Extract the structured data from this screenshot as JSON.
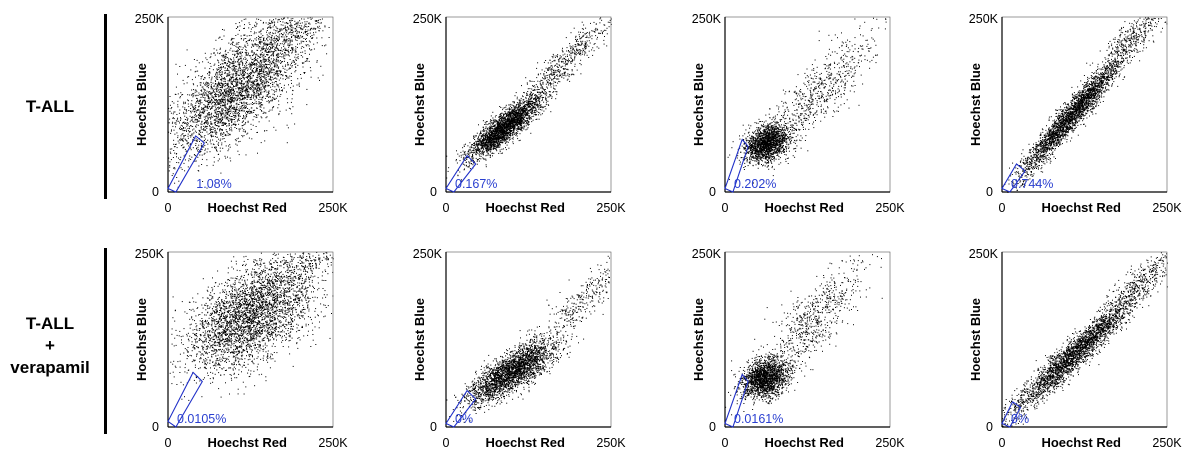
{
  "rows": [
    {
      "label_lines": [
        "T-ALL"
      ]
    },
    {
      "label_lines": [
        "T-ALL",
        "+",
        "verapamil"
      ]
    }
  ],
  "colors": {
    "points": "#000000",
    "gate": "#1f2fc8",
    "gate_label": "#2a3fd0",
    "axis": "#000000"
  },
  "chart_data": [
    {
      "type": "scatter",
      "row": 0,
      "col": 0,
      "xlabel": "Hoechst Red",
      "ylabel": "Hoechst Blue",
      "xlim": [
        0,
        250000
      ],
      "ylim": [
        0,
        250000
      ],
      "x_ticks": [
        "0",
        "250K"
      ],
      "y_ticks": [
        "0",
        "250K"
      ],
      "gate_percent": "1.08%",
      "gate_polygon": [
        [
          0,
          5000
        ],
        [
          12000,
          0
        ],
        [
          55000,
          70000
        ],
        [
          42000,
          80000
        ]
      ],
      "clusters": [
        {
          "cx": 105000,
          "cy": 150000,
          "sx": 70000,
          "sy": 28000,
          "angle": 42,
          "n": 3400
        },
        {
          "cx": 190000,
          "cy": 230000,
          "sx": 35000,
          "sy": 15000,
          "angle": 35,
          "n": 260
        }
      ]
    },
    {
      "type": "scatter",
      "row": 0,
      "col": 1,
      "xlabel": "Hoechst Red",
      "ylabel": "Hoechst Blue",
      "xlim": [
        0,
        250000
      ],
      "ylim": [
        0,
        250000
      ],
      "x_ticks": [
        "0",
        "250K"
      ],
      "y_ticks": [
        "0",
        "250K"
      ],
      "gate_percent": "0.167%",
      "gate_polygon": [
        [
          0,
          5000
        ],
        [
          12000,
          0
        ],
        [
          45000,
          40000
        ],
        [
          32000,
          52000
        ]
      ],
      "clusters": [
        {
          "cx": 88000,
          "cy": 92000,
          "sx": 34000,
          "sy": 9000,
          "angle": 38,
          "n": 2700
        },
        {
          "cx": 180000,
          "cy": 185000,
          "sx": 55000,
          "sy": 10000,
          "angle": 42,
          "n": 600
        }
      ]
    },
    {
      "type": "scatter",
      "row": 0,
      "col": 2,
      "xlabel": "Hoechst Red",
      "ylabel": "Hoechst Blue",
      "xlim": [
        0,
        250000
      ],
      "ylim": [
        0,
        250000
      ],
      "x_ticks": [
        "0",
        "250K"
      ],
      "y_ticks": [
        "0",
        "250K"
      ],
      "gate_percent": "0.202%",
      "gate_polygon": [
        [
          0,
          5000
        ],
        [
          12000,
          0
        ],
        [
          35000,
          65000
        ],
        [
          26000,
          75000
        ]
      ],
      "clusters": [
        {
          "cx": 62000,
          "cy": 70000,
          "sx": 18000,
          "sy": 12000,
          "angle": 25,
          "n": 1800
        },
        {
          "cx": 140000,
          "cy": 140000,
          "sx": 60000,
          "sy": 18000,
          "angle": 45,
          "n": 700
        }
      ]
    },
    {
      "type": "scatter",
      "row": 0,
      "col": 3,
      "xlabel": "Hoechst Red",
      "ylabel": "Hoechst Blue",
      "xlim": [
        0,
        250000
      ],
      "ylim": [
        0,
        250000
      ],
      "x_ticks": [
        "0",
        "250K"
      ],
      "y_ticks": [
        "0",
        "250K"
      ],
      "gate_percent": "0.744%",
      "gate_polygon": [
        [
          0,
          5000
        ],
        [
          12000,
          0
        ],
        [
          35000,
          30000
        ],
        [
          22000,
          40000
        ]
      ],
      "clusters": [
        {
          "cx": 105000,
          "cy": 110000,
          "sx": 60000,
          "sy": 8000,
          "angle": 48,
          "n": 2900
        },
        {
          "cx": 200000,
          "cy": 225000,
          "sx": 30000,
          "sy": 10000,
          "angle": 40,
          "n": 300
        }
      ]
    },
    {
      "type": "scatter",
      "row": 1,
      "col": 0,
      "xlabel": "Hoechst Red",
      "ylabel": "Hoechst Blue",
      "xlim": [
        0,
        250000
      ],
      "ylim": [
        0,
        250000
      ],
      "x_ticks": [
        "0",
        "250K"
      ],
      "y_ticks": [
        "0",
        "250K"
      ],
      "gate_percent": "0.0105%",
      "gate_polygon": [
        [
          0,
          8000
        ],
        [
          12000,
          0
        ],
        [
          52000,
          65000
        ],
        [
          38000,
          78000
        ]
      ],
      "clusters": [
        {
          "cx": 125000,
          "cy": 160000,
          "sx": 55000,
          "sy": 30000,
          "angle": 35,
          "n": 3400
        },
        {
          "cx": 205000,
          "cy": 235000,
          "sx": 30000,
          "sy": 12000,
          "angle": 20,
          "n": 200
        }
      ]
    },
    {
      "type": "scatter",
      "row": 1,
      "col": 1,
      "xlabel": "Hoechst Red",
      "ylabel": "Hoechst Blue",
      "xlim": [
        0,
        250000
      ],
      "ylim": [
        0,
        250000
      ],
      "x_ticks": [
        "0",
        "250K"
      ],
      "y_ticks": [
        "0",
        "250K"
      ],
      "gate_percent": "0%",
      "gate_polygon": [
        [
          0,
          5000
        ],
        [
          12000,
          0
        ],
        [
          45000,
          40000
        ],
        [
          32000,
          52000
        ]
      ],
      "clusters": [
        {
          "cx": 100000,
          "cy": 80000,
          "sx": 38000,
          "sy": 12000,
          "angle": 32,
          "n": 2700
        },
        {
          "cx": 205000,
          "cy": 180000,
          "sx": 40000,
          "sy": 12000,
          "angle": 42,
          "n": 300
        }
      ]
    },
    {
      "type": "scatter",
      "row": 1,
      "col": 2,
      "xlabel": "Hoechst Red",
      "ylabel": "Hoechst Blue",
      "xlim": [
        0,
        250000
      ],
      "ylim": [
        0,
        250000
      ],
      "x_ticks": [
        "0",
        "250K"
      ],
      "y_ticks": [
        "0",
        "250K"
      ],
      "gate_percent": "0.0161%",
      "gate_polygon": [
        [
          0,
          5000
        ],
        [
          12000,
          0
        ],
        [
          35000,
          65000
        ],
        [
          26000,
          75000
        ]
      ],
      "clusters": [
        {
          "cx": 60000,
          "cy": 70000,
          "sx": 18000,
          "sy": 13000,
          "angle": 25,
          "n": 1800
        },
        {
          "cx": 130000,
          "cy": 150000,
          "sx": 55000,
          "sy": 18000,
          "angle": 48,
          "n": 700
        }
      ]
    },
    {
      "type": "scatter",
      "row": 1,
      "col": 3,
      "xlabel": "Hoechst Red",
      "ylabel": "Hoechst Blue",
      "xlim": [
        0,
        250000
      ],
      "ylim": [
        0,
        250000
      ],
      "x_ticks": [
        "0",
        "250K"
      ],
      "y_ticks": [
        "0",
        "250K"
      ],
      "gate_percent": "0%",
      "gate_polygon": [
        [
          0,
          5000
        ],
        [
          12000,
          0
        ],
        [
          28000,
          28000
        ],
        [
          16000,
          36000
        ]
      ],
      "clusters": [
        {
          "cx": 110000,
          "cy": 105000,
          "sx": 65000,
          "sy": 9000,
          "angle": 42,
          "n": 2900
        },
        {
          "cx": 215000,
          "cy": 215000,
          "sx": 35000,
          "sy": 10000,
          "angle": 38,
          "n": 300
        }
      ]
    }
  ]
}
